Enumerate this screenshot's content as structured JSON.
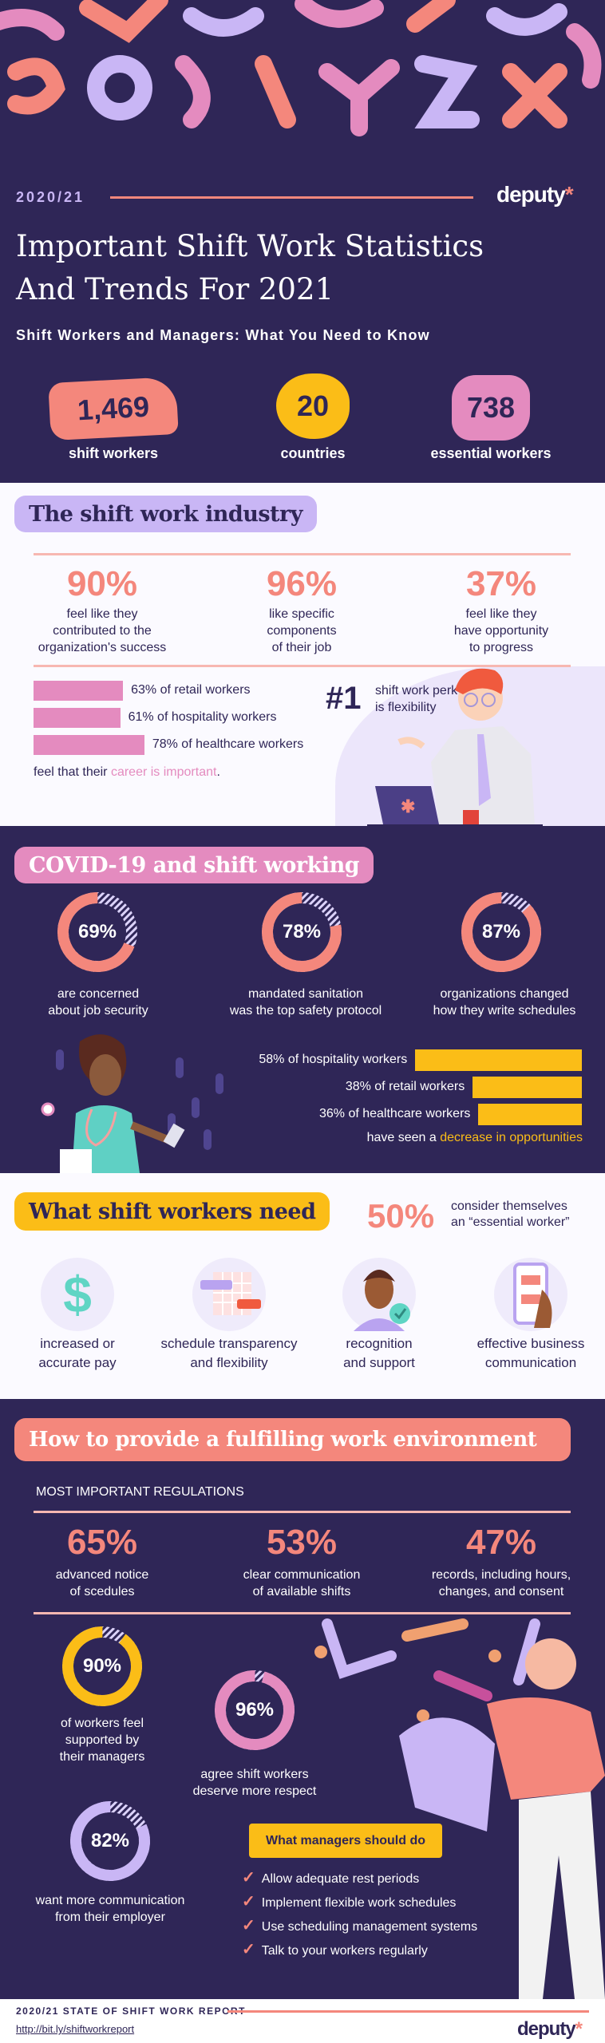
{
  "colors": {
    "purple": "#2f2657",
    "salmon": "#f4877c",
    "pink": "#e48bbf",
    "lavender": "#c9b6f5",
    "yellow": "#fbbd17"
  },
  "header": {
    "year": "2020/21",
    "logo": "deputy",
    "title_line1": "Important Shift Work Statistics",
    "title_line2": "And Trends For 2021",
    "subtitle": "Shift Workers and Managers: What You Need to Know",
    "stats": [
      {
        "value": "1,469",
        "label": "shift workers"
      },
      {
        "value": "20",
        "label": "countries"
      },
      {
        "value": "738",
        "label": "essential workers"
      }
    ]
  },
  "industry": {
    "title": "The shift work industry",
    "stats": [
      {
        "value": "90%",
        "l1": "feel like they",
        "l2": "contributed to the",
        "l3": "organization's success"
      },
      {
        "value": "96%",
        "l1": "like specific",
        "l2": "components",
        "l3": "of their job"
      },
      {
        "value": "37%",
        "l1": "feel like they",
        "l2": "have opportunity",
        "l3": "to progress"
      }
    ],
    "bars": [
      {
        "percent": 63,
        "label": "63% of retail workers"
      },
      {
        "percent": 61,
        "label": "61% of hospitality workers"
      },
      {
        "percent": 78,
        "label": "78% of healthcare workers"
      }
    ],
    "footnote_prefix": "feel that their ",
    "footnote_highlight": "career is important",
    "footnote_suffix": ".",
    "perk_rank": "#1",
    "perk_l1": "shift work perk",
    "perk_l2": "is flexibility"
  },
  "covid": {
    "title": "COVID-19 and shift working",
    "donuts": [
      {
        "percent": 69,
        "value": "69%",
        "l1": "are concerned",
        "l2": "about job security"
      },
      {
        "percent": 78,
        "value": "78%",
        "l1": "mandated sanitation",
        "l2": "was the top safety protocol"
      },
      {
        "percent": 87,
        "value": "87%",
        "l1": "organizations changed",
        "l2": "how they write schedules"
      }
    ],
    "bars": [
      {
        "percent": 58,
        "label": "58% of hospitality workers"
      },
      {
        "percent": 38,
        "label": "38% of retail workers"
      },
      {
        "percent": 36,
        "label": "36% of healthcare workers"
      }
    ],
    "footnote_prefix": "have seen a ",
    "footnote_highlight": "decrease in opportunities"
  },
  "needs": {
    "title": "What shift workers need",
    "stat_value": "50%",
    "stat_l1": "consider themselves",
    "stat_l2": "an “essential worker”",
    "items": [
      {
        "icon": "dollar-icon",
        "l1": "increased or",
        "l2": "accurate pay"
      },
      {
        "icon": "calendar-icon",
        "l1": "schedule transparency",
        "l2": "and flexibility"
      },
      {
        "icon": "recognition-icon",
        "l1": "recognition",
        "l2": "and support"
      },
      {
        "icon": "phone-chat-icon",
        "l1": "effective business",
        "l2": "communication"
      }
    ]
  },
  "environment": {
    "title": "How to provide a fulfilling work environment",
    "regs_heading": "MOST IMPORTANT REGULATIONS",
    "regs": [
      {
        "value": "65%",
        "l1": "advanced notice",
        "l2": "of scedules"
      },
      {
        "value": "53%",
        "l1": "clear communication",
        "l2": "of available shifts"
      },
      {
        "value": "47%",
        "l1": "records, including hours,",
        "l2": "changes, and consent"
      }
    ],
    "donuts": [
      {
        "percent": 90,
        "value": "90%",
        "l1": "of workers feel",
        "l2": "supported by",
        "l3": "their managers",
        "color": "#fbbd17"
      },
      {
        "percent": 96,
        "value": "96%",
        "l1": "agree shift workers",
        "l2": "deserve more respect",
        "color": "#e48bbf"
      },
      {
        "percent": 82,
        "value": "82%",
        "l1": "want more communication",
        "l2": "from their employer",
        "color": "#c9b6f5"
      }
    ],
    "managers_title": "What managers should do",
    "managers_items": [
      "Allow adequate rest periods",
      "Implement flexible work schedules",
      "Use scheduling management systems",
      "Talk to your workers regularly"
    ]
  },
  "footer": {
    "report": "2020/21 STATE OF SHIFT WORK REPORT",
    "link": "http://bit.ly/shiftworkreport",
    "logo": "deputy"
  }
}
